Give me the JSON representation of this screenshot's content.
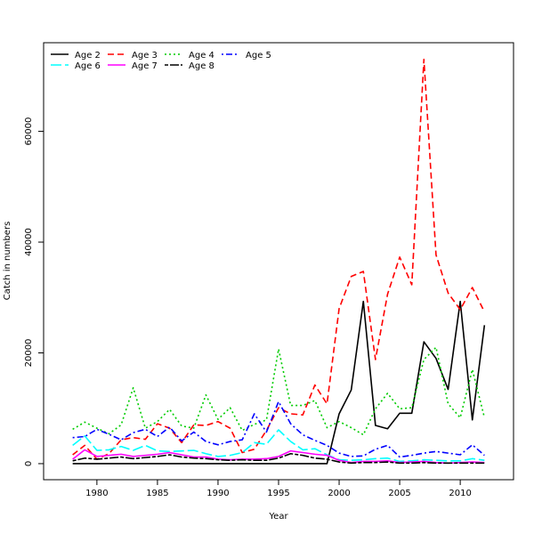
{
  "chart_data": {
    "type": "line",
    "title": "",
    "xlabel": "Year",
    "ylabel": "Catch in numbers",
    "xlim": [
      1975.6,
      2014.4
    ],
    "ylim": [
      -2900,
      76000
    ],
    "xticks": [
      1980,
      1985,
      1990,
      1995,
      2000,
      2005,
      2010
    ],
    "yticks": [
      0,
      20000,
      40000,
      60000
    ],
    "grid": false,
    "legend": "top-left",
    "x": [
      1978,
      1979,
      1980,
      1981,
      1982,
      1983,
      1984,
      1985,
      1986,
      1987,
      1988,
      1989,
      1990,
      1991,
      1992,
      1993,
      1994,
      1995,
      1996,
      1997,
      1998,
      1999,
      2000,
      2001,
      2002,
      2003,
      2004,
      2005,
      2006,
      2007,
      2008,
      2009,
      2010,
      2011,
      2012
    ],
    "series": [
      {
        "name": "Age 2",
        "color": "#000000",
        "dash": "solid",
        "values": [
          0,
          0,
          0,
          0,
          0,
          0,
          0,
          0,
          0,
          0,
          0,
          0,
          0,
          0,
          0,
          0,
          0,
          0,
          0,
          0,
          0,
          0,
          9000,
          13300,
          29300,
          6900,
          6300,
          9100,
          9100,
          22000,
          19000,
          13400,
          29300,
          7900,
          25000
        ]
      },
      {
        "name": "Age 3",
        "color": "#ff0000",
        "dash": "dashed",
        "values": [
          1600,
          3300,
          800,
          1800,
          4300,
          4700,
          4400,
          7200,
          6400,
          3800,
          7000,
          6900,
          7600,
          6400,
          2000,
          2600,
          6000,
          10100,
          9000,
          8800,
          14200,
          10800,
          28000,
          33800,
          34700,
          18800,
          30600,
          37300,
          32300,
          73000,
          37700,
          30800,
          27800,
          31800,
          27400
        ]
      },
      {
        "name": "Age 4",
        "color": "#00cc00",
        "dash": "dotted",
        "values": [
          6200,
          7500,
          6400,
          5400,
          7000,
          13700,
          6400,
          7600,
          9800,
          6800,
          6400,
          12400,
          8000,
          10100,
          6000,
          7100,
          7900,
          20700,
          10500,
          10500,
          11400,
          6500,
          7600,
          6500,
          5200,
          9900,
          12700,
          9900,
          10100,
          18800,
          21000,
          10800,
          8300,
          17000,
          8300
        ]
      },
      {
        "name": "Age 5",
        "color": "#0000ff",
        "dash": "dashdot",
        "values": [
          4700,
          4900,
          6200,
          5300,
          4300,
          5600,
          6200,
          4900,
          6600,
          4100,
          5700,
          4000,
          3400,
          4000,
          4300,
          9000,
          5700,
          11200,
          7200,
          5200,
          4200,
          3300,
          1900,
          1300,
          1400,
          2600,
          3300,
          1200,
          1500,
          1900,
          2200,
          1900,
          1600,
          3400,
          1500
        ]
      },
      {
        "name": "Age 6",
        "color": "#00ffff",
        "dash": "longdash",
        "values": [
          3300,
          5000,
          2400,
          2500,
          3100,
          2400,
          3300,
          2300,
          2200,
          2300,
          2400,
          1800,
          1300,
          1500,
          2000,
          3800,
          3500,
          6100,
          4000,
          2500,
          2700,
          1600,
          700,
          600,
          700,
          900,
          1000,
          400,
          500,
          700,
          600,
          500,
          500,
          900,
          600
        ]
      },
      {
        "name": "Age 7",
        "color": "#ff00ff",
        "dash": "solid",
        "values": [
          800,
          2500,
          1300,
          1500,
          1700,
          1300,
          1500,
          1700,
          2000,
          1600,
          1200,
          1200,
          800,
          700,
          800,
          800,
          900,
          1300,
          2300,
          2000,
          1700,
          1500,
          600,
          200,
          400,
          400,
          500,
          200,
          300,
          400,
          200,
          100,
          200,
          300,
          200
        ]
      },
      {
        "name": "Age 8",
        "color": "#000000",
        "dash": "twodash",
        "values": [
          500,
          1000,
          800,
          1000,
          1200,
          900,
          1100,
          1300,
          1600,
          1200,
          1000,
          900,
          700,
          600,
          700,
          600,
          600,
          1000,
          1800,
          1500,
          1000,
          800,
          300,
          100,
          200,
          200,
          300,
          100,
          100,
          200,
          100,
          100,
          100,
          100,
          100
        ]
      }
    ]
  }
}
